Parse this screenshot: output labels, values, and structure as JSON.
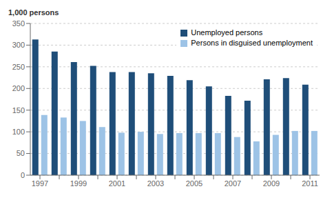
{
  "chart_data": {
    "type": "bar",
    "ylabel": "1,000 persons",
    "categories": [
      "1997",
      null,
      "1999",
      null,
      "2001",
      null,
      "2003",
      null,
      "2005",
      null,
      "2007",
      null,
      "2009",
      null,
      "2011"
    ],
    "series": [
      {
        "name": "Unemployed persons",
        "color": "#1F4E79",
        "values": [
          313,
          285,
          261,
          252,
          238,
          238,
          235,
          229,
          219,
          205,
          183,
          172,
          221,
          224,
          209
        ]
      },
      {
        "name": "Persons in disguised unemployment",
        "color": "#9DC3E6",
        "values": [
          139,
          133,
          125,
          111,
          98,
          100,
          95,
          97,
          97,
          97,
          88,
          78,
          93,
          102,
          102
        ]
      }
    ],
    "ylim": [
      0,
      350
    ],
    "yticks": [
      0,
      50,
      100,
      150,
      200,
      250,
      300,
      350
    ],
    "grid": true,
    "legend": "upper right"
  }
}
